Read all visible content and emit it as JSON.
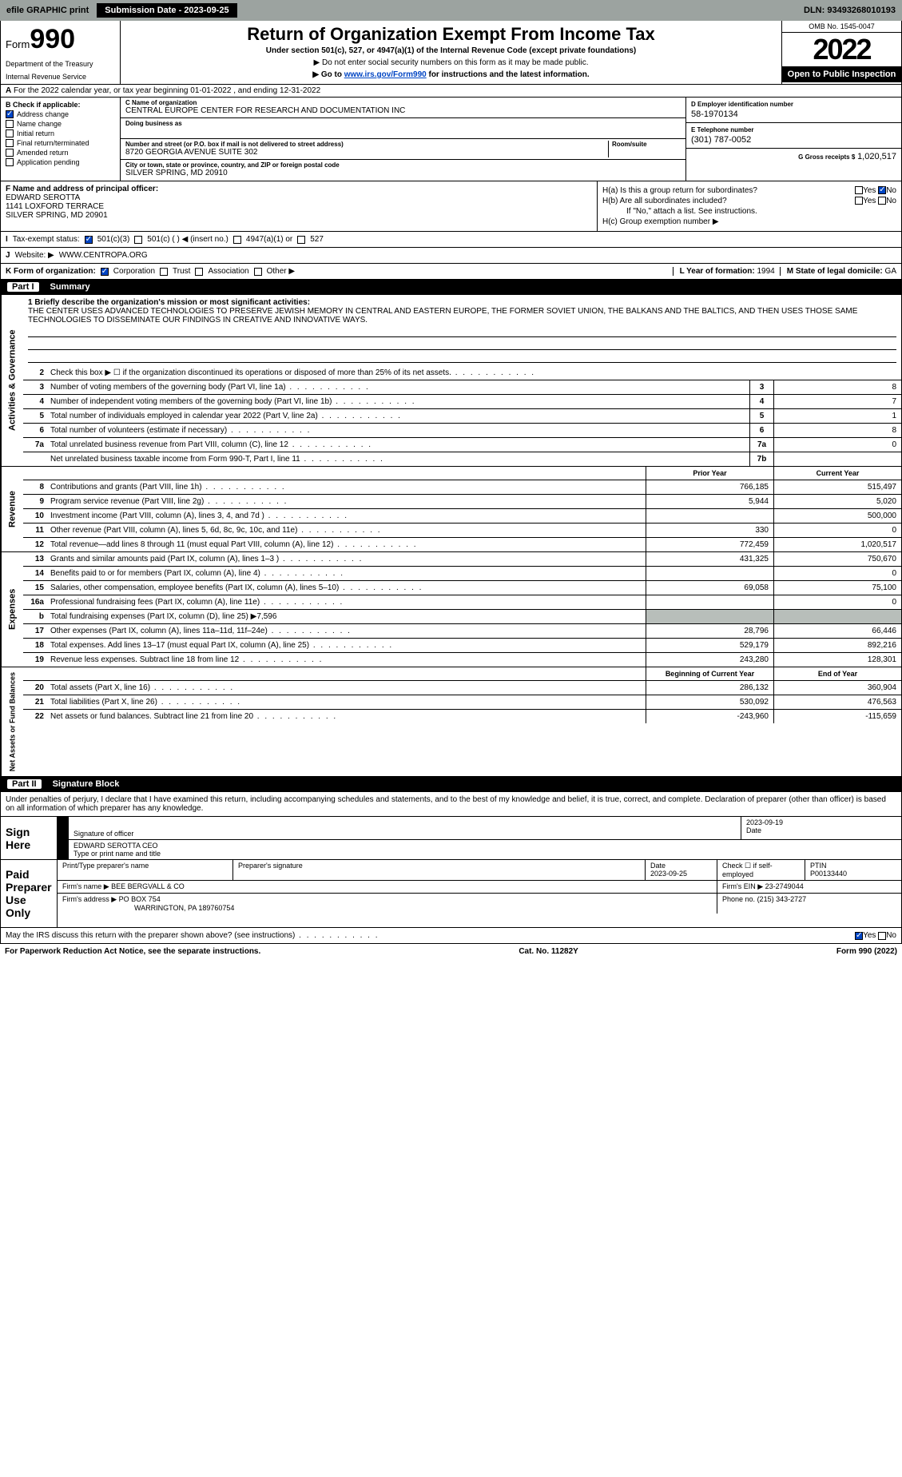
{
  "topbar": {
    "efile": "efile GRAPHIC print",
    "submission_label": "Submission Date - 2023-09-25",
    "dln": "DLN: 93493268010193"
  },
  "header": {
    "form_word": "Form",
    "form_num": "990",
    "dept1": "Department of the Treasury",
    "dept2": "Internal Revenue Service",
    "title": "Return of Organization Exempt From Income Tax",
    "sub": "Under section 501(c), 527, or 4947(a)(1) of the Internal Revenue Code (except private foundations)",
    "note": "▶ Do not enter social security numbers on this form as it may be made public.",
    "link_pre": "▶ Go to ",
    "link_url": "www.irs.gov/Form990",
    "link_post": " for instructions and the latest information.",
    "omb": "OMB No. 1545-0047",
    "year": "2022",
    "open": "Open to Public Inspection"
  },
  "lineA": "For the 2022 calendar year, or tax year beginning 01-01-2022   , and ending 12-31-2022",
  "boxB": {
    "title": "B Check if applicable:",
    "items": [
      "Address change",
      "Name change",
      "Initial return",
      "Final return/terminated",
      "Amended return",
      "Application pending"
    ],
    "checked_index": 0
  },
  "boxC": {
    "name_lab": "C Name of organization",
    "name": "CENTRAL EUROPE CENTER FOR RESEARCH AND DOCUMENTATION INC",
    "dba_lab": "Doing business as",
    "dba": "",
    "street_lab": "Number and street (or P.O. box if mail is not delivered to street address)",
    "street": "8720 GEORGIA AVENUE SUITE 302",
    "room_lab": "Room/suite",
    "city_lab": "City or town, state or province, country, and ZIP or foreign postal code",
    "city": "SILVER SPRING, MD  20910"
  },
  "boxD": {
    "lab": "D Employer identification number",
    "val": "58-1970134"
  },
  "boxE": {
    "lab": "E Telephone number",
    "val": "(301) 787-0052"
  },
  "boxG": {
    "lab": "G Gross receipts $",
    "val": "1,020,517"
  },
  "boxF": {
    "lab": "F  Name and address of principal officer:",
    "l1": "EDWARD SEROTTA",
    "l2": "1141 LOXFORD TERRACE",
    "l3": "SILVER SPRING, MD  20901"
  },
  "boxH": {
    "a": "H(a)  Is this a group return for subordinates?",
    "b": "H(b)  Are all subordinates included?",
    "bnote": "If \"No,\" attach a list. See instructions.",
    "c": "H(c)  Group exemption number ▶",
    "yes": "Yes",
    "no": "No"
  },
  "lineI": {
    "lab": "Tax-exempt status:",
    "o1": "501(c)(3)",
    "o2": "501(c) (  ) ◀ (insert no.)",
    "o3": "4947(a)(1) or",
    "o4": "527"
  },
  "lineJ": {
    "lab": "Website: ▶",
    "val": "WWW.CENTROPA.ORG"
  },
  "lineK": {
    "lab": "K Form of organization:",
    "o1": "Corporation",
    "o2": "Trust",
    "o3": "Association",
    "o4": "Other ▶"
  },
  "lineL": {
    "lab": "L Year of formation:",
    "val": "1994"
  },
  "lineM": {
    "lab": "M State of legal domicile:",
    "val": "GA"
  },
  "part1": {
    "title": "Part I",
    "name": "Summary",
    "mission_lab": "1  Briefly describe the organization's mission or most significant activities:",
    "mission": "THE CENTER USES ADVANCED TECHNOLOGIES TO PRESERVE JEWISH MEMORY IN CENTRAL AND EASTERN EUROPE, THE FORMER SOVIET UNION, THE BALKANS AND THE BALTICS, AND THEN USES THOSE SAME TECHNOLOGIES TO DISSEMINATE OUR FINDINGS IN CREATIVE AND INNOVATIVE WAYS.",
    "sections": {
      "s1": "Activities & Governance",
      "s2": "Revenue",
      "s3": "Expenses",
      "s4": "Net Assets or Fund Balances"
    },
    "col_prior": "Prior Year",
    "col_current": "Current Year",
    "col_begin": "Beginning of Current Year",
    "col_end": "End of Year",
    "lines_top": [
      {
        "n": "2",
        "t": "Check this box ▶ ☐  if the organization discontinued its operations or disposed of more than 25% of its net assets."
      },
      {
        "n": "3",
        "t": "Number of voting members of the governing body (Part VI, line 1a)",
        "box": "3",
        "v": "8"
      },
      {
        "n": "4",
        "t": "Number of independent voting members of the governing body (Part VI, line 1b)",
        "box": "4",
        "v": "7"
      },
      {
        "n": "5",
        "t": "Total number of individuals employed in calendar year 2022 (Part V, line 2a)",
        "box": "5",
        "v": "1"
      },
      {
        "n": "6",
        "t": "Total number of volunteers (estimate if necessary)",
        "box": "6",
        "v": "8"
      },
      {
        "n": "7a",
        "t": "Total unrelated business revenue from Part VIII, column (C), line 12",
        "box": "7a",
        "v": "0"
      },
      {
        "n": "",
        "t": "Net unrelated business taxable income from Form 990-T, Part I, line 11",
        "box": "7b",
        "v": ""
      }
    ],
    "lines_rev": [
      {
        "n": "8",
        "t": "Contributions and grants (Part VIII, line 1h)",
        "p": "766,185",
        "c": "515,497"
      },
      {
        "n": "9",
        "t": "Program service revenue (Part VIII, line 2g)",
        "p": "5,944",
        "c": "5,020"
      },
      {
        "n": "10",
        "t": "Investment income (Part VIII, column (A), lines 3, 4, and 7d )",
        "p": "",
        "c": "500,000"
      },
      {
        "n": "11",
        "t": "Other revenue (Part VIII, column (A), lines 5, 6d, 8c, 9c, 10c, and 11e)",
        "p": "330",
        "c": "0"
      },
      {
        "n": "12",
        "t": "Total revenue—add lines 8 through 11 (must equal Part VIII, column (A), line 12)",
        "p": "772,459",
        "c": "1,020,517"
      }
    ],
    "lines_exp": [
      {
        "n": "13",
        "t": "Grants and similar amounts paid (Part IX, column (A), lines 1–3 )",
        "p": "431,325",
        "c": "750,670"
      },
      {
        "n": "14",
        "t": "Benefits paid to or for members (Part IX, column (A), line 4)",
        "p": "",
        "c": "0"
      },
      {
        "n": "15",
        "t": "Salaries, other compensation, employee benefits (Part IX, column (A), lines 5–10)",
        "p": "69,058",
        "c": "75,100"
      },
      {
        "n": "16a",
        "t": "Professional fundraising fees (Part IX, column (A), line 11e)",
        "p": "",
        "c": "0"
      },
      {
        "n": "b",
        "t": "Total fundraising expenses (Part IX, column (D), line 25) ▶7,596",
        "grey": true
      },
      {
        "n": "17",
        "t": "Other expenses (Part IX, column (A), lines 11a–11d, 11f–24e)",
        "p": "28,796",
        "c": "66,446"
      },
      {
        "n": "18",
        "t": "Total expenses. Add lines 13–17 (must equal Part IX, column (A), line 25)",
        "p": "529,179",
        "c": "892,216"
      },
      {
        "n": "19",
        "t": "Revenue less expenses. Subtract line 18 from line 12",
        "p": "243,280",
        "c": "128,301"
      }
    ],
    "lines_net": [
      {
        "n": "20",
        "t": "Total assets (Part X, line 16)",
        "p": "286,132",
        "c": "360,904"
      },
      {
        "n": "21",
        "t": "Total liabilities (Part X, line 26)",
        "p": "530,092",
        "c": "476,563"
      },
      {
        "n": "22",
        "t": "Net assets or fund balances. Subtract line 21 from line 20",
        "p": "-243,960",
        "c": "-115,659"
      }
    ]
  },
  "part2": {
    "title": "Part II",
    "name": "Signature Block",
    "decl": "Under penalties of perjury, I declare that I have examined this return, including accompanying schedules and statements, and to the best of my knowledge and belief, it is true, correct, and complete. Declaration of preparer (other than officer) is based on all information of which preparer has any knowledge.",
    "sign_here": "Sign Here",
    "sig_officer": "Signature of officer",
    "sig_date": "2023-09-19",
    "date_lab": "Date",
    "typed": "EDWARD SEROTTA CEO",
    "typed_lab": "Type or print name and title",
    "paid": "Paid Preparer Use Only",
    "pp_name_lab": "Print/Type preparer's name",
    "pp_sig_lab": "Preparer's signature",
    "pp_date_lab": "Date",
    "pp_date": "2023-09-25",
    "pp_check": "Check ☐ if self-employed",
    "ptin_lab": "PTIN",
    "ptin": "P00133440",
    "firm_name_lab": "Firm's name    ▶",
    "firm_name": "BEE BERGVALL & CO",
    "firm_ein_lab": "Firm's EIN ▶",
    "firm_ein": "23-2749044",
    "firm_addr_lab": "Firm's address ▶",
    "firm_addr1": "PO BOX 754",
    "firm_addr2": "WARRINGTON, PA  189760754",
    "phone_lab": "Phone no.",
    "phone": "(215) 343-2727",
    "may": "May the IRS discuss this return with the preparer shown above? (see instructions)",
    "yes": "Yes",
    "no": "No"
  },
  "footer": {
    "left": "For Paperwork Reduction Act Notice, see the separate instructions.",
    "mid": "Cat. No. 11282Y",
    "right": "Form 990 (2022)"
  },
  "colors": {
    "topbar": "#9ca3a0",
    "link": "#0045c4",
    "grey_cell": "#b8beba"
  }
}
